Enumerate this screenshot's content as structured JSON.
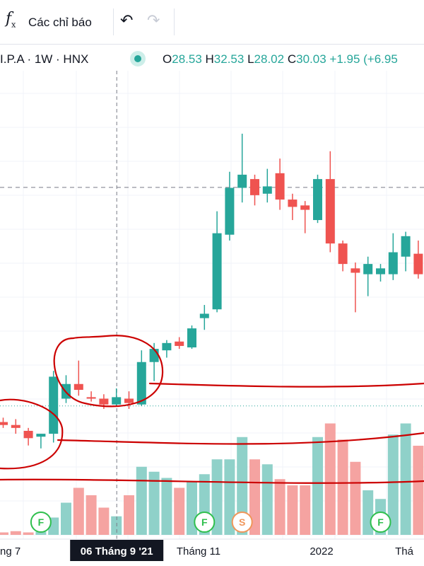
{
  "toolbar": {
    "fx_label": "f",
    "fx_sub": "x",
    "indicators_label": "Các chỉ báo",
    "undo_icon": "undo-icon",
    "redo_icon": "redo-icon"
  },
  "legend": {
    "symbol": "I.P.A · 1W · HNX",
    "o_key": "O",
    "o_val": "28.53",
    "h_key": "H",
    "h_val": "32.53",
    "l_key": "L",
    "l_val": "28.02",
    "c_key": "C",
    "c_val": "30.03",
    "change": "+1.95 (+6.95"
  },
  "colors": {
    "up": "#26a69a",
    "down": "#ef5350",
    "vol_up": "#8fd1c9",
    "vol_down": "#f5a3a1",
    "annotation": "#cc0000",
    "event_green": "#2fbf4d",
    "event_orange": "#f0965a",
    "axis_text": "#131722"
  },
  "chart_data": {
    "type": "candlestick",
    "timeframe": "1W",
    "y_range": [
      9,
      38
    ],
    "volume_range": [
      0,
      1
    ],
    "x_tick_labels": [
      "ng 7",
      "Tháng 11",
      "2022",
      "Thá"
    ],
    "crosshair_label": "06 Tháng 9 '21",
    "current_price_line": 30.03,
    "dotted_level": 15.1,
    "candles": [
      {
        "o": 14.0,
        "h": 14.3,
        "l": 13.6,
        "c": 13.8
      },
      {
        "o": 13.8,
        "h": 14.2,
        "l": 13.2,
        "c": 13.6
      },
      {
        "o": 13.4,
        "h": 13.6,
        "l": 12.4,
        "c": 12.9
      },
      {
        "o": 13.0,
        "h": 13.2,
        "l": 12.2,
        "c": 13.2
      },
      {
        "o": 13.2,
        "h": 17.5,
        "l": 12.6,
        "c": 17.1
      },
      {
        "o": 15.6,
        "h": 17.2,
        "l": 15.3,
        "c": 16.6
      },
      {
        "o": 16.6,
        "h": 18.2,
        "l": 15.8,
        "c": 16.2
      },
      {
        "o": 15.7,
        "h": 16.1,
        "l": 15.4,
        "c": 15.6
      },
      {
        "o": 15.6,
        "h": 15.9,
        "l": 14.9,
        "c": 15.2
      },
      {
        "o": 15.2,
        "h": 16.3,
        "l": 15.1,
        "c": 15.7
      },
      {
        "o": 15.6,
        "h": 16.1,
        "l": 14.9,
        "c": 15.3
      },
      {
        "o": 15.2,
        "h": 18.9,
        "l": 15.1,
        "c": 18.1
      },
      {
        "o": 18.1,
        "h": 19.4,
        "l": 16.8,
        "c": 19.0
      },
      {
        "o": 18.9,
        "h": 19.6,
        "l": 18.4,
        "c": 19.4
      },
      {
        "o": 19.5,
        "h": 19.8,
        "l": 19.0,
        "c": 19.2
      },
      {
        "o": 19.1,
        "h": 20.6,
        "l": 19.0,
        "c": 20.4
      },
      {
        "o": 21.1,
        "h": 22.0,
        "l": 20.3,
        "c": 21.4
      },
      {
        "o": 21.7,
        "h": 28.4,
        "l": 21.5,
        "c": 26.9
      },
      {
        "o": 26.8,
        "h": 31.1,
        "l": 26.4,
        "c": 30.0
      },
      {
        "o": 30.0,
        "h": 33.7,
        "l": 29.0,
        "c": 30.9
      },
      {
        "o": 30.6,
        "h": 30.9,
        "l": 28.8,
        "c": 29.5
      },
      {
        "o": 29.6,
        "h": 31.3,
        "l": 29.0,
        "c": 30.1
      },
      {
        "o": 31.0,
        "h": 32.0,
        "l": 28.5,
        "c": 29.2
      },
      {
        "o": 29.2,
        "h": 29.6,
        "l": 27.8,
        "c": 28.7
      },
      {
        "o": 28.8,
        "h": 29.1,
        "l": 26.9,
        "c": 28.5
      },
      {
        "o": 27.8,
        "h": 30.9,
        "l": 27.6,
        "c": 30.6
      },
      {
        "o": 30.6,
        "h": 32.5,
        "l": 25.6,
        "c": 26.2
      },
      {
        "o": 26.2,
        "h": 26.4,
        "l": 24.3,
        "c": 24.8
      },
      {
        "o": 24.5,
        "h": 24.9,
        "l": 21.5,
        "c": 24.2
      },
      {
        "o": 24.1,
        "h": 25.3,
        "l": 22.6,
        "c": 24.8
      },
      {
        "o": 24.1,
        "h": 24.8,
        "l": 23.6,
        "c": 24.5
      },
      {
        "o": 24.1,
        "h": 26.9,
        "l": 23.7,
        "c": 25.6
      },
      {
        "o": 25.3,
        "h": 27.0,
        "l": 24.3,
        "c": 26.7
      },
      {
        "o": 25.5,
        "h": 26.4,
        "l": 23.8,
        "c": 24.1
      }
    ],
    "volumes": [
      0.02,
      0.03,
      0.02,
      0.025,
      0.14,
      0.26,
      0.38,
      0.32,
      0.22,
      0.15,
      0.32,
      0.55,
      0.51,
      0.46,
      0.38,
      0.43,
      0.49,
      0.61,
      0.61,
      0.79,
      0.61,
      0.57,
      0.45,
      0.4,
      0.4,
      0.79,
      0.9,
      0.77,
      0.59,
      0.36,
      0.29,
      0.81,
      0.9,
      0.72
    ],
    "event_markers": [
      {
        "label": "F",
        "candle": 3,
        "type": "green"
      },
      {
        "label": "F",
        "candle": 16,
        "type": "green"
      },
      {
        "label": "S",
        "candle": 19,
        "type": "orange"
      },
      {
        "label": "F",
        "candle": 30,
        "type": "green"
      }
    ]
  }
}
